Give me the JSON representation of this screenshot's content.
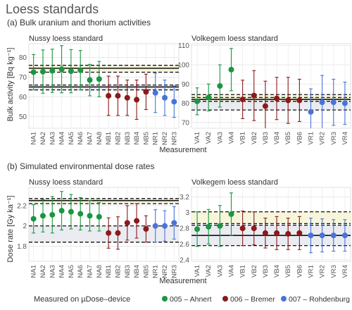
{
  "title": "Loess standards",
  "section_a": "(a) Bulk uranium and thorium activities",
  "section_b": "(b) Simulated environmental dose rates",
  "xlabel": "Measurement",
  "legend": {
    "title": "Measured on µDose–device",
    "items": [
      {
        "name": "005 – Ahnert",
        "color": "#1a9641"
      },
      {
        "name": "006 – Bremer",
        "color": "#8b1a1a"
      },
      {
        "name": "007 – Rohdenburg",
        "color": "#4a73d9"
      }
    ]
  },
  "chart_data": [
    {
      "type": "scatter",
      "title": "Nussy loess standard",
      "ylabel": "Bulk activity [Bq kg⁻¹]",
      "ylim": [
        44,
        87
      ],
      "yticks": [
        50,
        60,
        70,
        80
      ],
      "grid": true,
      "categories": [
        "NA1",
        "NA2",
        "NA3",
        "NA4",
        "NA5",
        "NA6",
        "NA7",
        "NA8",
        "NB1",
        "NB2",
        "NB3",
        "NB4",
        "NB5",
        "NR1",
        "NR2",
        "NR3"
      ],
      "y": [
        72.5,
        72.8,
        73.2,
        74.0,
        73.0,
        73.5,
        68.5,
        69.0,
        60.5,
        60.5,
        59.5,
        58.5,
        62.5,
        62.0,
        59.5,
        57.5
      ],
      "err": [
        9,
        11,
        11,
        12,
        11,
        10,
        8,
        9,
        10,
        10,
        9,
        10,
        9,
        10,
        9,
        8
      ],
      "device": [
        0,
        0,
        0,
        0,
        0,
        0,
        0,
        0,
        1,
        1,
        1,
        1,
        1,
        2,
        2,
        2
      ],
      "hlines_dashed": [
        76.0,
        72.5,
        66.0,
        63.5
      ],
      "hlines_solid": [
        74.5,
        65.0
      ],
      "bands": [
        [
          72.5,
          76.0
        ],
        [
          63.5,
          66.0
        ]
      ]
    },
    {
      "type": "scatter",
      "title": "Volkegem loess standard",
      "ylim": [
        67,
        111
      ],
      "yticks": [
        70,
        80,
        90,
        100,
        110
      ],
      "grid": true,
      "categories": [
        "VA1",
        "VA2",
        "VA3",
        "VA4",
        "VB1",
        "VB2",
        "VB3",
        "VB4",
        "VB5",
        "VB6",
        "VR1",
        "VR2",
        "VR3",
        "VR4"
      ],
      "y": [
        81.0,
        83.0,
        89.0,
        97.5,
        82.0,
        84.0,
        78.5,
        82.5,
        81.5,
        81.5,
        75.5,
        80.5,
        80.5,
        80.0
      ],
      "err": [
        7,
        7,
        11,
        11,
        10,
        13,
        13,
        11,
        12,
        11,
        12,
        14,
        12,
        11
      ],
      "device": [
        0,
        0,
        0,
        0,
        1,
        1,
        1,
        1,
        1,
        1,
        2,
        2,
        2,
        2
      ],
      "hlines_dashed": [
        84.5,
        83.0,
        81.0,
        76.5
      ],
      "hlines_solid": [
        82.0
      ],
      "bands": [
        [
          81.0,
          84.5
        ],
        [
          76.5,
          81.5
        ]
      ]
    },
    {
      "type": "scatter",
      "title": "Nussy loess standard",
      "ylabel": "Dose rate [Gy ka⁻¹]",
      "ylim": [
        1.65,
        2.38
      ],
      "yticks": [
        1.8,
        2.0,
        2.2
      ],
      "grid": true,
      "categories": [
        "NA1",
        "NA2",
        "NA3",
        "NA4",
        "NA5",
        "NA6",
        "NA7",
        "NA8",
        "NB1",
        "NB2",
        "NB3",
        "NB4",
        "NB5",
        "NR1",
        "NR2",
        "NR3"
      ],
      "y": [
        2.07,
        2.1,
        2.11,
        2.15,
        2.14,
        2.12,
        2.1,
        2.09,
        1.93,
        1.93,
        2.03,
        2.05,
        1.97,
        2.0,
        2.0,
        2.03
      ],
      "err": [
        0.14,
        0.16,
        0.18,
        0.19,
        0.17,
        0.16,
        0.15,
        0.14,
        0.15,
        0.16,
        0.17,
        0.17,
        0.13,
        0.16,
        0.15,
        0.16
      ],
      "device": [
        0,
        0,
        0,
        0,
        0,
        0,
        0,
        0,
        1,
        1,
        1,
        1,
        1,
        2,
        2,
        2
      ],
      "hlines_dashed": [
        2.27,
        2.22,
        2.0,
        1.84
      ],
      "hlines_solid": [
        2.25
      ],
      "bands": [
        [
          2.22,
          2.27
        ],
        [
          1.84,
          2.0
        ]
      ]
    },
    {
      "type": "scatter",
      "title": "Volkegem loess standard",
      "ylim": [
        2.38,
        3.32
      ],
      "yticks": [
        2.4,
        2.6,
        2.8,
        3.0,
        3.2
      ],
      "grid": true,
      "categories": [
        "VA1",
        "VA2",
        "VA3",
        "VA4",
        "VB1",
        "VB2",
        "VB3",
        "VB4",
        "VB5",
        "VB6",
        "VR1",
        "VR2",
        "VR3",
        "VR4"
      ],
      "y": [
        2.79,
        2.82,
        2.83,
        2.98,
        2.8,
        2.8,
        2.74,
        2.74,
        2.73,
        2.74,
        2.71,
        2.71,
        2.71,
        2.71
      ],
      "err": [
        0.22,
        0.22,
        0.26,
        0.27,
        0.22,
        0.21,
        0.19,
        0.21,
        0.2,
        0.21,
        0.22,
        0.21,
        0.2,
        0.2
      ],
      "device": [
        0,
        0,
        0,
        0,
        1,
        1,
        1,
        1,
        1,
        1,
        2,
        2,
        2,
        2
      ],
      "hlines_dashed": [
        3.01,
        2.86,
        2.84,
        2.58
      ],
      "hlines_solid": [
        2.71
      ],
      "bands": [
        [
          2.86,
          3.01
        ],
        [
          2.58,
          2.84
        ]
      ]
    }
  ]
}
